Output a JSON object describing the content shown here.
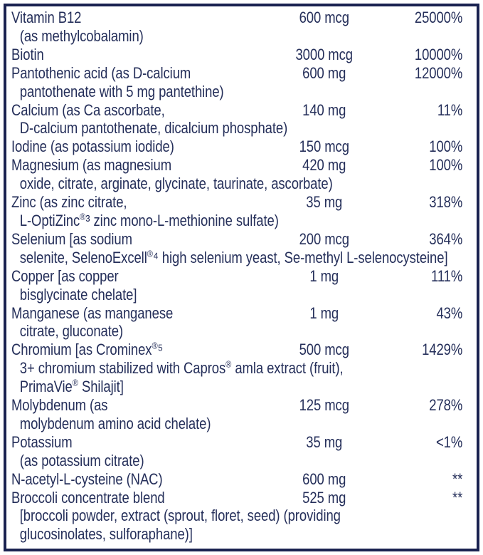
{
  "panel": {
    "border_color": "#1a2250",
    "text_color": "#252f5a",
    "rows": [
      {
        "name": "Vitamin B12",
        "continuations": [
          "(as methylcobalamin)"
        ],
        "amount": "600 mcg",
        "dv": "25000%"
      },
      {
        "name": "Biotin",
        "continuations": [],
        "amount": "3000 mcg",
        "dv": "10000%"
      },
      {
        "name": "Pantothenic acid (as D-calcium",
        "continuations": [
          "pantothenate with 5 mg pantethine)"
        ],
        "amount": "600 mg",
        "dv": "12000%"
      },
      {
        "name": "Calcium (as Ca ascorbate,",
        "continuations": [
          "D-calcium pantothenate, dicalcium phosphate)"
        ],
        "amount": "140 mg",
        "dv": "11%"
      },
      {
        "name": "Iodine (as potassium iodide)",
        "continuations": [],
        "amount": "150 mcg",
        "dv": "100%"
      },
      {
        "name": "Magnesium (as magnesium",
        "continuations": [
          "oxide, citrate, arginate, glycinate, taurinate, ascorbate)"
        ],
        "amount": "420 mg",
        "dv": "100%"
      },
      {
        "name": "Zinc (as zinc citrate,",
        "continuations": [
          "L-OptiZinc®³ zinc mono-L-methionine sulfate)"
        ],
        "amount": "35 mg",
        "dv": "318%"
      },
      {
        "name": "Selenium [as sodium",
        "continuations": [
          "selenite, SelenoExcell®⁴ high selenium yeast, Se-methyl L-selenocysteine]"
        ],
        "amount": "200 mcg",
        "dv": "364%"
      },
      {
        "name": "Copper [as copper",
        "continuations": [
          "bisglycinate chelate]"
        ],
        "amount": "1 mg",
        "dv": "111%"
      },
      {
        "name": "Manganese (as manganese",
        "continuations": [
          "citrate, gluconate)"
        ],
        "amount": "1 mg",
        "dv": "43%"
      },
      {
        "name": "Chromium [as Crominex®⁵",
        "continuations": [
          "3+ chromium stabilized with Capros® amla extract (fruit),",
          "PrimaVie® Shilajit]"
        ],
        "amount": "500 mcg",
        "dv": "1429%"
      },
      {
        "name": "Molybdenum (as",
        "continuations": [
          "molybdenum amino acid chelate)"
        ],
        "amount": "125 mcg",
        "dv": "278%"
      },
      {
        "name": "Potassium",
        "continuations": [
          "(as potassium citrate)"
        ],
        "amount": "35 mg",
        "dv": "<1%"
      },
      {
        "name": "N-acetyl-L-cysteine (NAC)",
        "continuations": [],
        "amount": "600 mg",
        "dv": "**"
      },
      {
        "name": "Broccoli concentrate blend",
        "continuations": [
          "[broccoli powder, extract (sprout, floret, seed) (providing",
          "glucosinolates, sulforaphane)]"
        ],
        "amount": "525 mg",
        "dv": "**"
      }
    ]
  }
}
